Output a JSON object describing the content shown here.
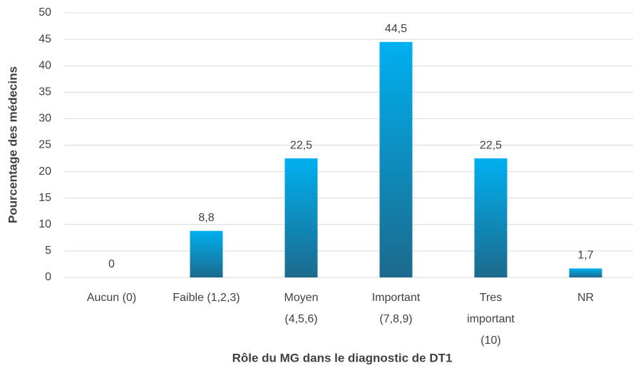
{
  "chart_data": {
    "type": "bar",
    "categories": [
      "Aucun (0)",
      "Faible (1,2,3)",
      "Moyen\n(4,5,6)",
      "Important\n(7,8,9)",
      "Tres\nimportant\n(10)",
      "NR"
    ],
    "values": [
      0,
      8.8,
      22.5,
      44.5,
      22.5,
      1.7
    ],
    "value_labels": [
      "0",
      "8,8",
      "22,5",
      "44,5",
      "22,5",
      "1,7"
    ],
    "color": "#00b0f0",
    "ylim": [
      0,
      50
    ],
    "yticks": [
      0,
      5,
      10,
      15,
      20,
      25,
      30,
      35,
      40,
      45,
      50
    ],
    "grid": true,
    "xlabel": "Rôle du MG dans le diagnostic de DT1",
    "ylabel": "Pourcentage des médecins"
  }
}
